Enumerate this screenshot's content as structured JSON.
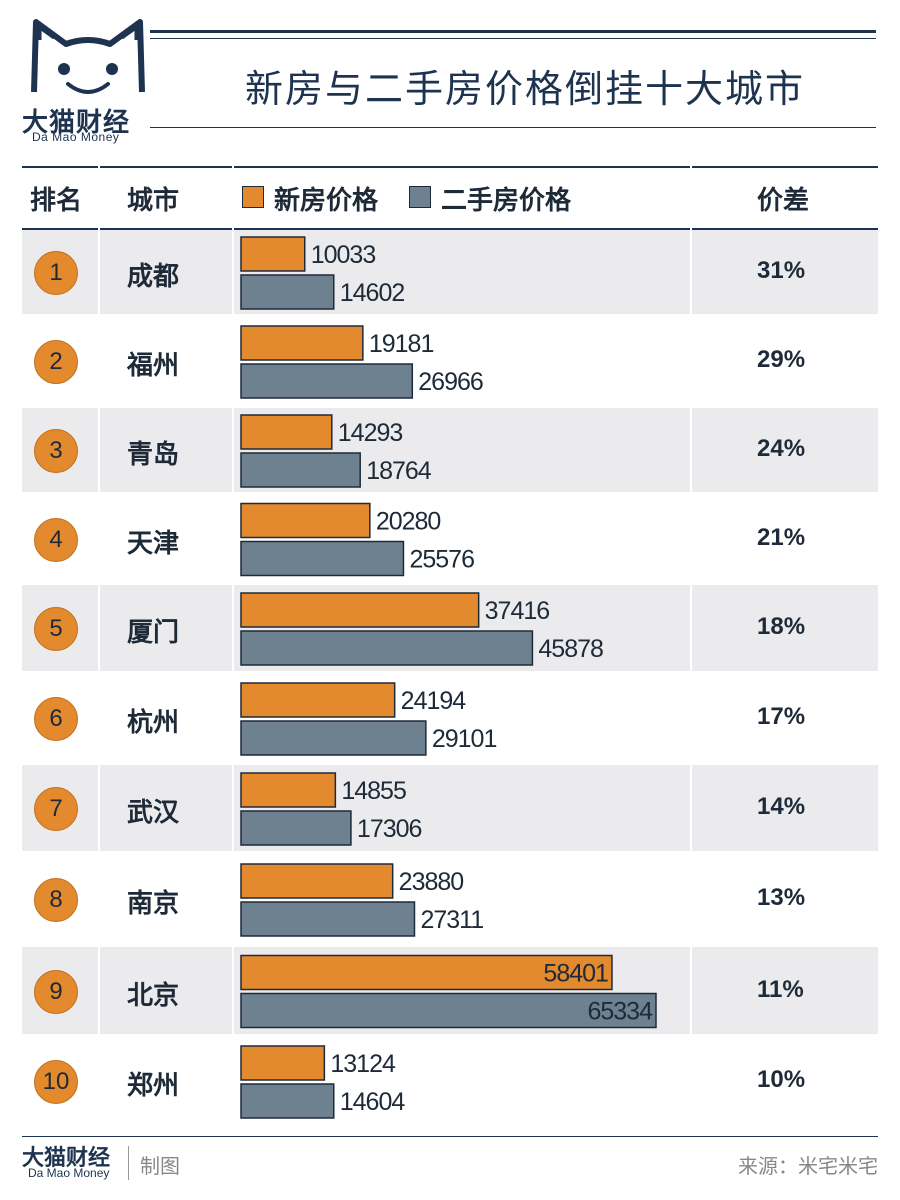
{
  "header": {
    "logo_cn": "大猫财经",
    "logo_en": "Da Mao Money",
    "title": "新房与二手房价格倒挂十大城市"
  },
  "columns": {
    "rank": "排名",
    "city": "城市",
    "legend_new": "新房价格",
    "legend_second": "二手房价格",
    "diff": "价差"
  },
  "colors": {
    "new_price": "#e48a2e",
    "second_price": "#6e8191",
    "brand": "#1e3350"
  },
  "chart_data": {
    "type": "bar",
    "orientation": "horizontal",
    "title": "新房与二手房价格倒挂十大城市",
    "categories": [
      "成都",
      "福州",
      "青岛",
      "天津",
      "厦门",
      "杭州",
      "武汉",
      "南京",
      "北京",
      "郑州"
    ],
    "series": [
      {
        "name": "新房价格",
        "values": [
          10033,
          19181,
          14293,
          20280,
          37416,
          24194,
          14855,
          23880,
          58401,
          13124
        ]
      },
      {
        "name": "二手房价格",
        "values": [
          14602,
          26966,
          18764,
          25576,
          45878,
          29101,
          17306,
          27311,
          65334,
          14604
        ]
      }
    ],
    "xlim": [
      0,
      70000
    ],
    "grid": false,
    "legend": "top"
  },
  "rows": [
    {
      "rank": "1",
      "city": "成都",
      "diff": "31%"
    },
    {
      "rank": "2",
      "city": "福州",
      "diff": "29%"
    },
    {
      "rank": "3",
      "city": "青岛",
      "diff": "24%"
    },
    {
      "rank": "4",
      "city": "天津",
      "diff": "21%"
    },
    {
      "rank": "5",
      "city": "厦门",
      "diff": "18%"
    },
    {
      "rank": "6",
      "city": "杭州",
      "diff": "17%"
    },
    {
      "rank": "7",
      "city": "武汉",
      "diff": "14%"
    },
    {
      "rank": "8",
      "city": "南京",
      "diff": "13%"
    },
    {
      "rank": "9",
      "city": "北京",
      "diff": "11%"
    },
    {
      "rank": "10",
      "city": "郑州",
      "diff": "10%"
    }
  ],
  "footer": {
    "logo_cn": "大猫财经",
    "logo_en": "Da Mao Money",
    "made": "制图",
    "source": "来源：米宅米宅"
  }
}
